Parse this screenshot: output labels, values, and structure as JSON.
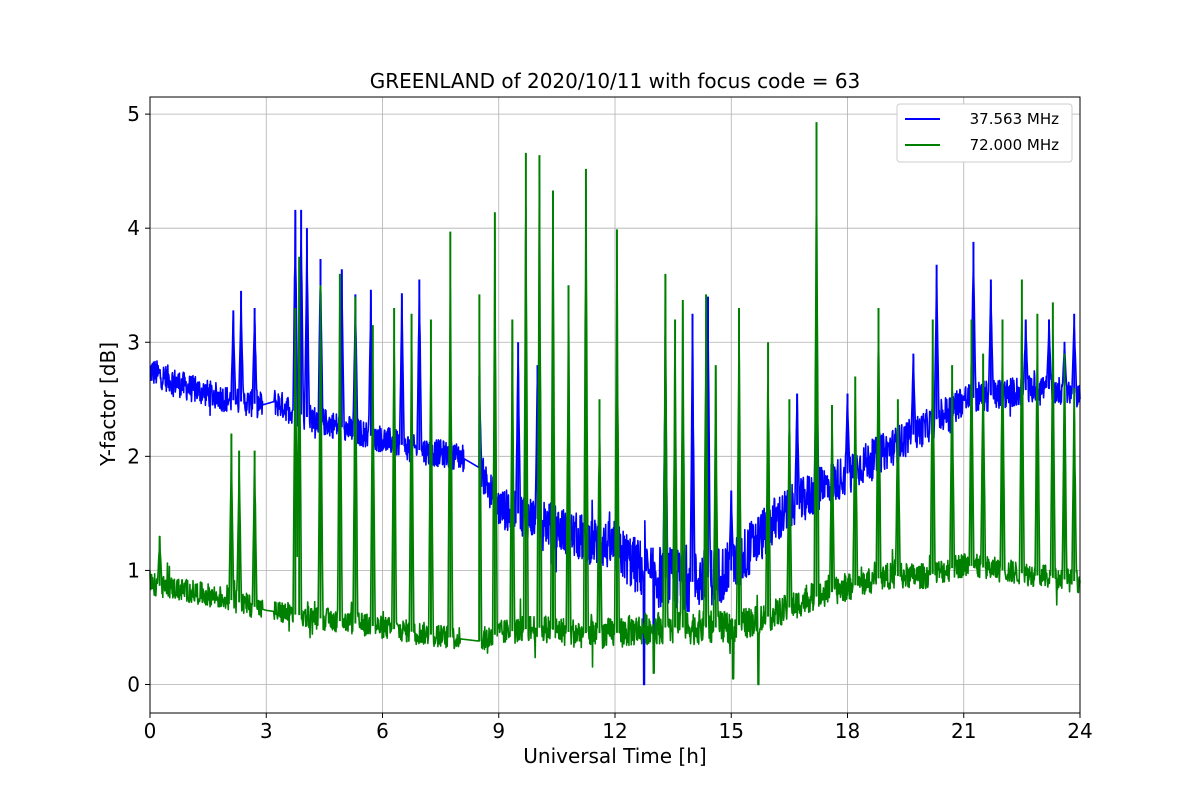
{
  "chart_data": {
    "type": "line",
    "title": "GREENLAND of 2020/10/11 with focus code = 63",
    "xlabel": "Universal Time [h]",
    "ylabel": "Y-factor [dB]",
    "xlim": [
      0,
      24
    ],
    "ylim": [
      -0.25,
      5.15
    ],
    "xticks": [
      0,
      3,
      6,
      9,
      12,
      15,
      18,
      21,
      24
    ],
    "yticks": [
      0,
      1,
      2,
      3,
      4,
      5
    ],
    "grid": true,
    "legend_position": "upper right",
    "series": [
      {
        "name": "37.563 MHz",
        "color": "#0000ff",
        "baseline": [
          [
            0,
            2.75
          ],
          [
            1,
            2.6
          ],
          [
            2,
            2.5
          ],
          [
            2.9,
            2.45
          ],
          [
            3.2,
            2.48
          ],
          [
            4,
            2.35
          ],
          [
            5,
            2.25
          ],
          [
            6,
            2.15
          ],
          [
            7,
            2.05
          ],
          [
            8,
            2.0
          ],
          [
            8.5,
            1.9
          ],
          [
            9,
            1.55
          ],
          [
            10,
            1.45
          ],
          [
            11,
            1.3
          ],
          [
            12,
            1.2
          ],
          [
            12.5,
            1.05
          ],
          [
            13,
            0.95
          ],
          [
            14,
            0.9
          ],
          [
            15,
            1.0
          ],
          [
            16,
            1.4
          ],
          [
            17,
            1.65
          ],
          [
            18,
            1.85
          ],
          [
            19,
            2.05
          ],
          [
            20,
            2.25
          ],
          [
            21,
            2.5
          ],
          [
            22,
            2.55
          ],
          [
            23,
            2.6
          ],
          [
            24,
            2.55
          ]
        ],
        "noise_amplitude": [
          [
            0,
            0.12
          ],
          [
            8,
            0.12
          ],
          [
            9,
            0.18
          ],
          [
            12,
            0.22
          ],
          [
            13,
            0.28
          ],
          [
            15,
            0.25
          ],
          [
            17,
            0.2
          ],
          [
            20,
            0.15
          ],
          [
            24,
            0.12
          ]
        ],
        "spikes": [
          [
            2.15,
            3.28
          ],
          [
            2.35,
            3.45
          ],
          [
            2.7,
            3.3
          ],
          [
            3.75,
            4.16
          ],
          [
            3.9,
            4.16
          ],
          [
            4.05,
            4.0
          ],
          [
            4.4,
            3.73
          ],
          [
            4.95,
            3.64
          ],
          [
            5.3,
            3.42
          ],
          [
            5.7,
            3.46
          ],
          [
            6.5,
            3.43
          ],
          [
            6.95,
            3.55
          ],
          [
            8.5,
            2.7
          ],
          [
            9.5,
            3.0
          ],
          [
            10.0,
            2.8
          ],
          [
            13.3,
            3.05
          ],
          [
            14.0,
            3.25
          ],
          [
            14.4,
            3.4
          ],
          [
            15.0,
            1.7
          ],
          [
            16.7,
            2.55
          ],
          [
            17.2,
            2.95
          ],
          [
            18.0,
            2.55
          ],
          [
            19.7,
            2.9
          ],
          [
            20.3,
            3.68
          ],
          [
            21.25,
            3.88
          ],
          [
            21.7,
            3.55
          ],
          [
            22.6,
            3.2
          ],
          [
            23.2,
            3.2
          ],
          [
            23.6,
            3.0
          ],
          [
            23.85,
            3.25
          ]
        ],
        "gaps": [
          [
            2.9,
            3.2
          ],
          [
            8.1,
            8.5
          ],
          [
            12.85,
            12.9
          ]
        ],
        "min_points": [
          [
            12.75,
            0.0
          ],
          [
            13.0,
            0.2
          ]
        ]
      },
      {
        "name": "72.000 MHz",
        "color": "#008000",
        "baseline": [
          [
            0,
            0.88
          ],
          [
            1,
            0.82
          ],
          [
            2,
            0.75
          ],
          [
            3,
            0.65
          ],
          [
            4,
            0.6
          ],
          [
            5,
            0.55
          ],
          [
            6,
            0.5
          ],
          [
            7,
            0.45
          ],
          [
            8,
            0.4
          ],
          [
            8.5,
            0.38
          ],
          [
            9,
            0.45
          ],
          [
            10,
            0.5
          ],
          [
            11,
            0.45
          ],
          [
            12,
            0.45
          ],
          [
            13,
            0.5
          ],
          [
            14,
            0.5
          ],
          [
            15,
            0.5
          ],
          [
            16,
            0.6
          ],
          [
            17,
            0.75
          ],
          [
            18,
            0.85
          ],
          [
            19,
            0.95
          ],
          [
            20,
            0.95
          ],
          [
            21,
            1.05
          ],
          [
            22,
            1.0
          ],
          [
            23,
            0.95
          ],
          [
            24,
            0.9
          ]
        ],
        "noise_amplitude": [
          [
            0,
            0.1
          ],
          [
            8,
            0.1
          ],
          [
            10,
            0.12
          ],
          [
            14,
            0.15
          ],
          [
            17,
            0.12
          ],
          [
            24,
            0.1
          ]
        ],
        "spikes": [
          [
            0.25,
            1.3
          ],
          [
            2.1,
            2.2
          ],
          [
            2.3,
            2.05
          ],
          [
            2.7,
            2.05
          ],
          [
            3.75,
            3.3
          ],
          [
            3.85,
            3.75
          ],
          [
            4.4,
            3.5
          ],
          [
            4.9,
            3.6
          ],
          [
            5.3,
            3.4
          ],
          [
            5.75,
            3.15
          ],
          [
            6.3,
            3.3
          ],
          [
            6.75,
            3.25
          ],
          [
            7.25,
            3.2
          ],
          [
            7.75,
            3.97
          ],
          [
            8.5,
            3.42
          ],
          [
            8.9,
            4.14
          ],
          [
            9.35,
            3.2
          ],
          [
            9.7,
            4.66
          ],
          [
            10.05,
            4.64
          ],
          [
            10.4,
            4.33
          ],
          [
            10.8,
            3.5
          ],
          [
            11.25,
            4.52
          ],
          [
            11.6,
            2.5
          ],
          [
            12.05,
            3.99
          ],
          [
            13.3,
            3.6
          ],
          [
            13.55,
            3.2
          ],
          [
            13.75,
            3.37
          ],
          [
            14.35,
            3.42
          ],
          [
            14.6,
            2.8
          ],
          [
            15.2,
            3.3
          ],
          [
            15.95,
            3.0
          ],
          [
            16.5,
            2.5
          ],
          [
            17.2,
            4.93
          ],
          [
            17.6,
            2.45
          ],
          [
            18.2,
            2.7
          ],
          [
            18.8,
            3.3
          ],
          [
            19.3,
            2.5
          ],
          [
            20.2,
            3.2
          ],
          [
            20.7,
            2.8
          ],
          [
            21.2,
            3.2
          ],
          [
            21.5,
            2.9
          ],
          [
            22.0,
            3.2
          ],
          [
            22.5,
            3.55
          ],
          [
            22.9,
            3.25
          ],
          [
            23.3,
            3.35
          ],
          [
            23.6,
            2.9
          ],
          [
            23.85,
            2.6
          ]
        ],
        "gaps": [
          [
            2.9,
            3.2
          ],
          [
            8.0,
            8.5
          ]
        ],
        "min_points": [
          [
            13.0,
            0.1
          ],
          [
            15.05,
            0.05
          ],
          [
            15.7,
            0.0
          ]
        ]
      }
    ]
  }
}
